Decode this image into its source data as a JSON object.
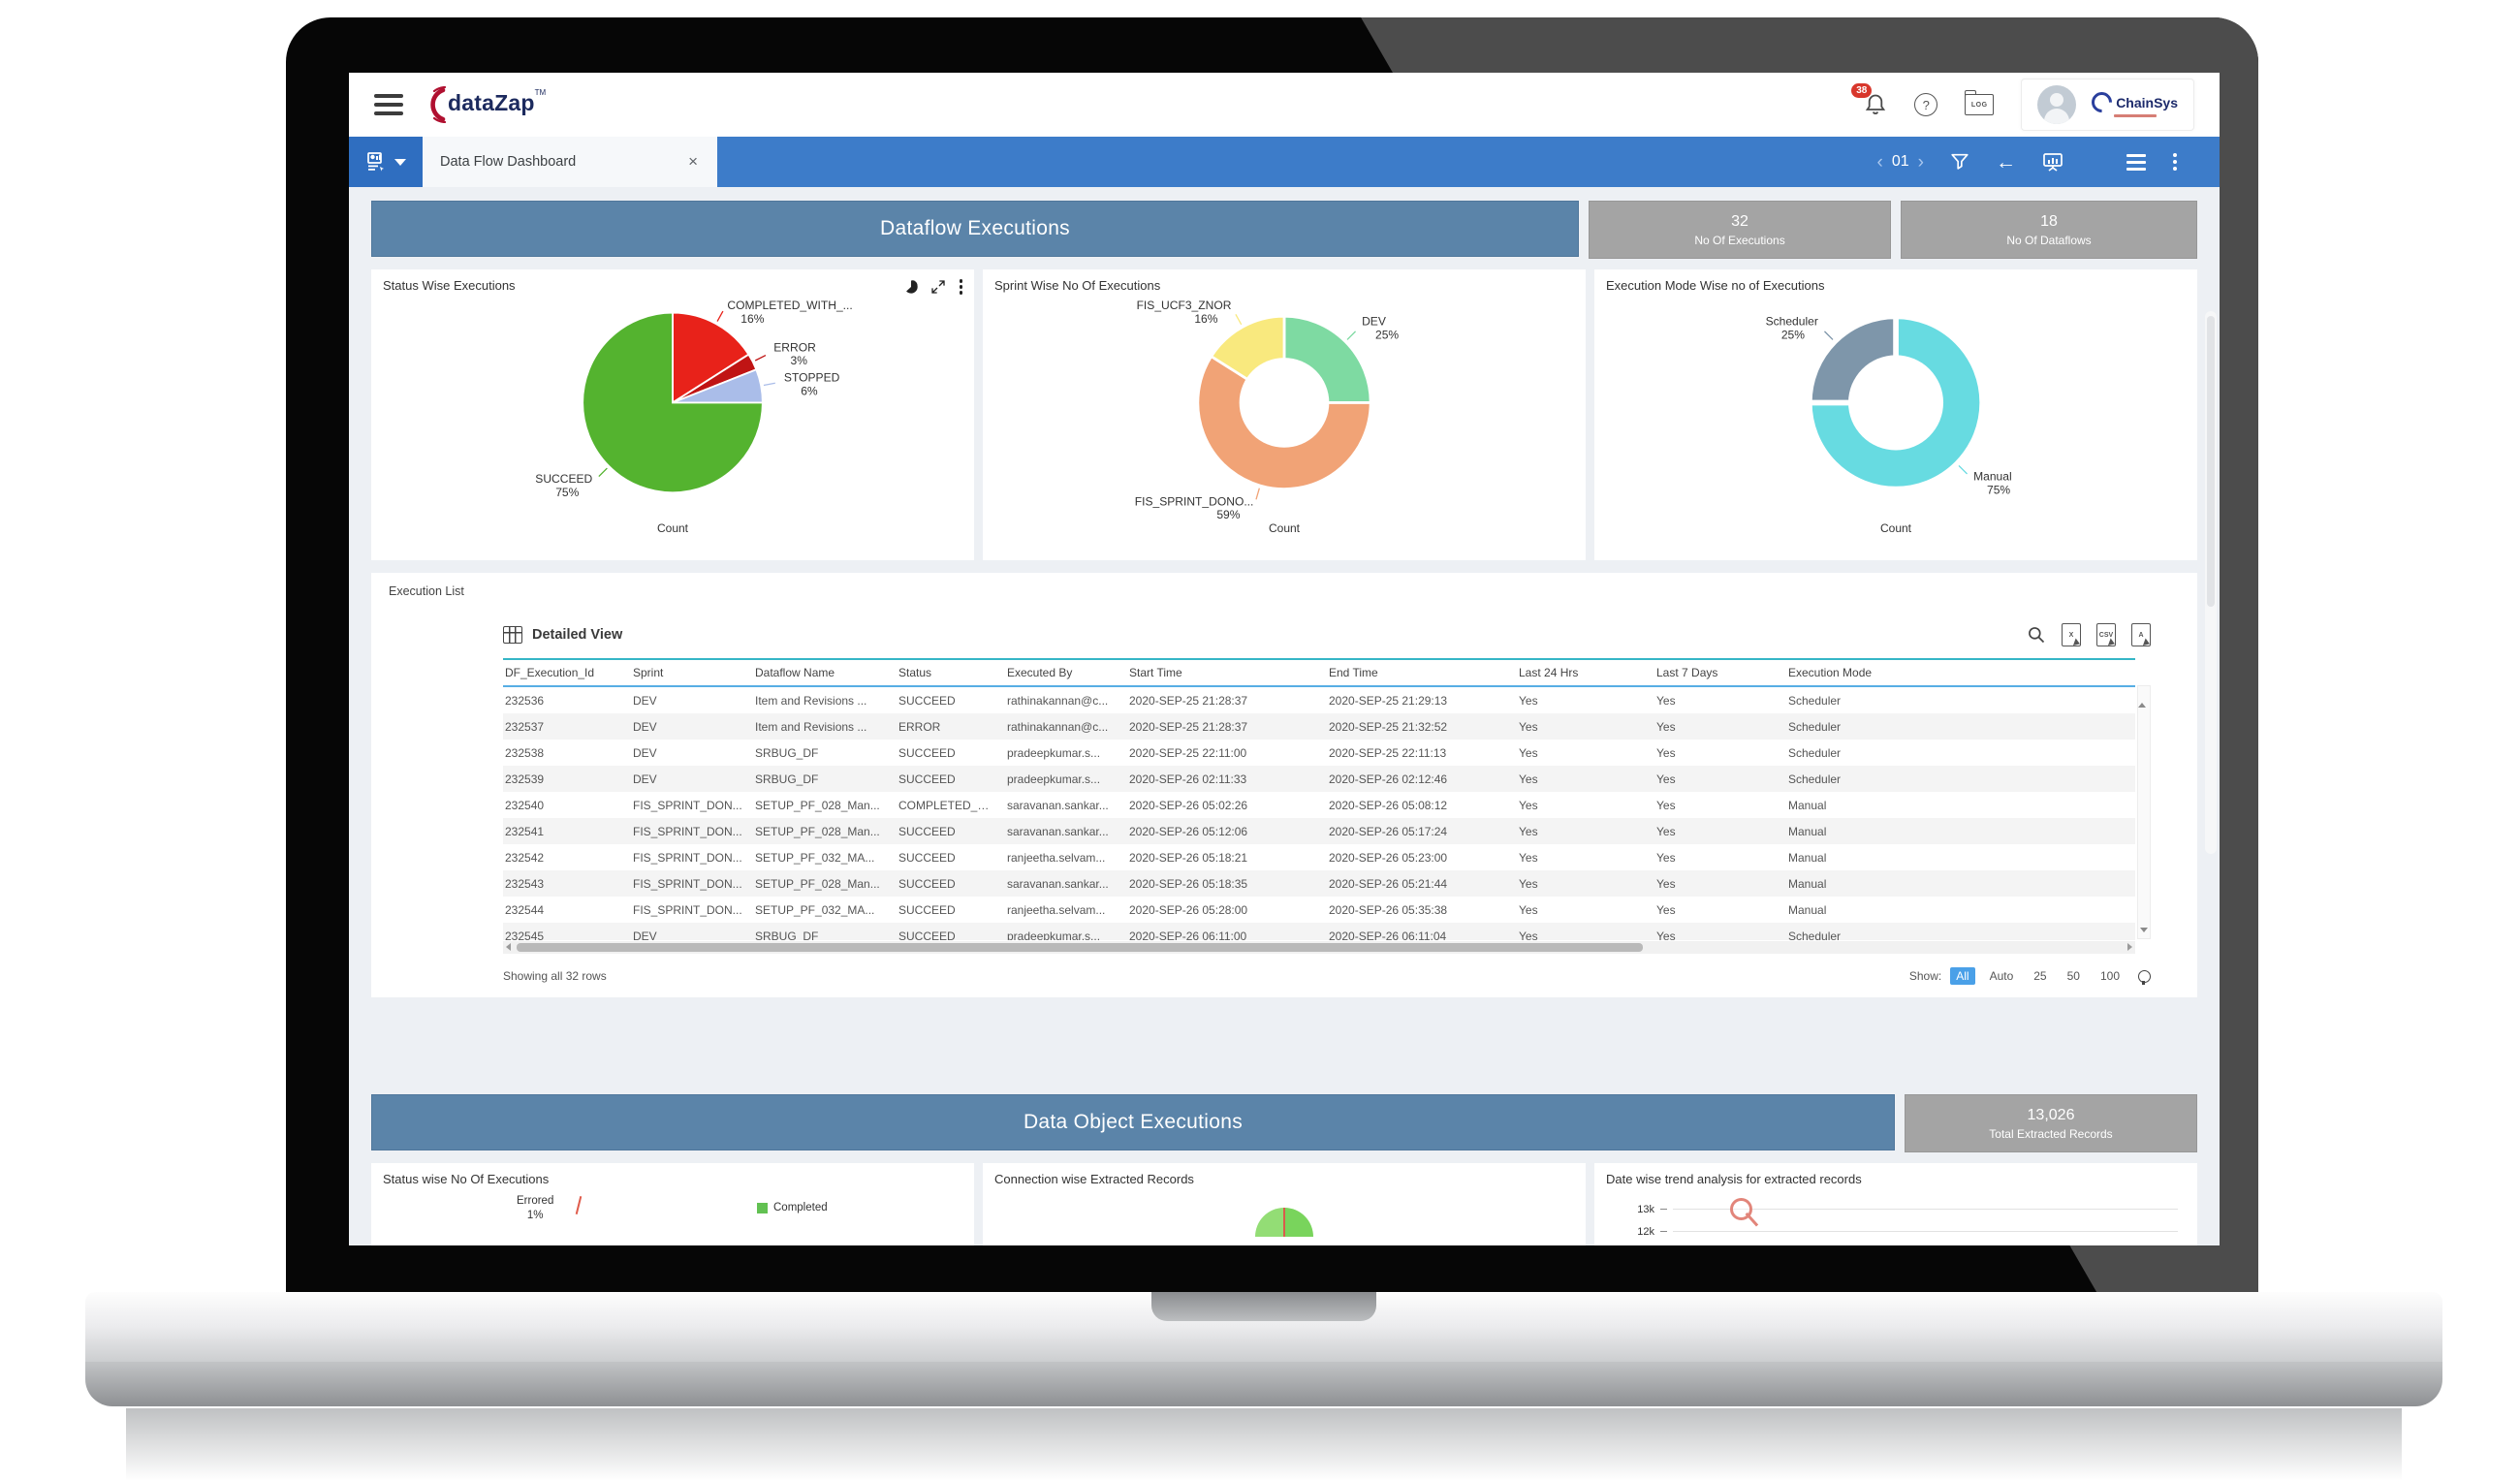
{
  "header": {
    "logo": {
      "text": "dataZap",
      "tm": "TM"
    },
    "notification_count": "38",
    "log_label": "LOG",
    "help_label": "?",
    "brand": {
      "name": "ChainSys"
    }
  },
  "toolbar": {
    "tab_title": "Data Flow Dashboard",
    "close": "×",
    "prev": "‹",
    "next": "›",
    "page_indicator": "01",
    "back_arrow": "←"
  },
  "sections": {
    "dataflow": {
      "title": "Dataflow Executions",
      "stats": [
        {
          "value": "32",
          "label": "No Of Executions"
        },
        {
          "value": "18",
          "label": "No Of Dataflows"
        }
      ]
    },
    "data_object": {
      "title": "Data Object Executions",
      "stats": [
        {
          "value": "13,026",
          "label": "Total Extracted Records"
        }
      ]
    }
  },
  "chart_data": [
    {
      "type": "pie",
      "title": "Status Wise Executions",
      "xlabel": "Count",
      "categories": [
        "COMPLETED_WITH_...",
        "ERROR",
        "STOPPED",
        "SUCCEED"
      ],
      "values": [
        16,
        3,
        6,
        75
      ],
      "unit": "%",
      "colors": [
        "#e8221a",
        "#c01414",
        "#aabde9",
        "#54b32f"
      ],
      "inner_ratio": 0,
      "legend": "off"
    },
    {
      "type": "donut",
      "title": "Sprint Wise No Of Executions",
      "xlabel": "Count",
      "categories": [
        "DEV",
        "FIS_SPRINT_DONO...",
        "FIS_UCF3_ZNOR"
      ],
      "values": [
        25,
        59,
        16
      ],
      "unit": "%",
      "colors": [
        "#7edaa2",
        "#f1a376",
        "#f9e97e"
      ],
      "inner_ratio": 0.52,
      "legend": "off"
    },
    {
      "type": "donut",
      "title": "Execution Mode Wise no of Executions",
      "xlabel": "Count",
      "categories": [
        "Manual",
        "Scheduler"
      ],
      "values": [
        75,
        25
      ],
      "unit": "%",
      "colors": [
        "#67dbe1",
        "#7e96aa"
      ],
      "inner_ratio": 0.55,
      "legend": "off"
    },
    {
      "type": "pie",
      "title": "Status wise No Of Executions",
      "partial": true,
      "callout": {
        "label": "Errored",
        "value": "1%"
      },
      "legend": [
        "Completed"
      ]
    },
    {
      "type": "pie",
      "title": "Connection wise Extracted Records",
      "partial": true
    },
    {
      "type": "line",
      "title": "Date wise trend analysis for extracted records",
      "partial": true,
      "yticks": [
        "13k",
        "12k"
      ]
    }
  ],
  "execution_list": {
    "section_label": "Execution List",
    "view_label": "Detailed View",
    "columns": [
      "DF_Execution_Id",
      "Sprint",
      "Dataflow Name",
      "Status",
      "Executed By",
      "Start Time",
      "End Time",
      "Last 24 Hrs",
      "Last 7 Days",
      "Execution Mode"
    ],
    "rows": [
      [
        "232536",
        "DEV",
        "Item and Revisions ...",
        "SUCCEED",
        "rathinakannan@c...",
        "2020-SEP-25 21:28:37",
        "2020-SEP-25 21:29:13",
        "Yes",
        "Yes",
        "Scheduler"
      ],
      [
        "232537",
        "DEV",
        "Item and Revisions ...",
        "ERROR",
        "rathinakannan@c...",
        "2020-SEP-25 21:28:37",
        "2020-SEP-25 21:32:52",
        "Yes",
        "Yes",
        "Scheduler"
      ],
      [
        "232538",
        "DEV",
        "SRBUG_DF",
        "SUCCEED",
        "pradeepkumar.s...",
        "2020-SEP-25 22:11:00",
        "2020-SEP-25 22:11:13",
        "Yes",
        "Yes",
        "Scheduler"
      ],
      [
        "232539",
        "DEV",
        "SRBUG_DF",
        "SUCCEED",
        "pradeepkumar.s...",
        "2020-SEP-26 02:11:33",
        "2020-SEP-26 02:12:46",
        "Yes",
        "Yes",
        "Scheduler"
      ],
      [
        "232540",
        "FIS_SPRINT_DON...",
        "SETUP_PF_028_Man...",
        "COMPLETED_WIT...",
        "saravanan.sankar...",
        "2020-SEP-26 05:02:26",
        "2020-SEP-26 05:08:12",
        "Yes",
        "Yes",
        "Manual"
      ],
      [
        "232541",
        "FIS_SPRINT_DON...",
        "SETUP_PF_028_Man...",
        "SUCCEED",
        "saravanan.sankar...",
        "2020-SEP-26 05:12:06",
        "2020-SEP-26 05:17:24",
        "Yes",
        "Yes",
        "Manual"
      ],
      [
        "232542",
        "FIS_SPRINT_DON...",
        "SETUP_PF_032_MA...",
        "SUCCEED",
        "ranjeetha.selvam...",
        "2020-SEP-26 05:18:21",
        "2020-SEP-26 05:23:00",
        "Yes",
        "Yes",
        "Manual"
      ],
      [
        "232543",
        "FIS_SPRINT_DON...",
        "SETUP_PF_028_Man...",
        "SUCCEED",
        "saravanan.sankar...",
        "2020-SEP-26 05:18:35",
        "2020-SEP-26 05:21:44",
        "Yes",
        "Yes",
        "Manual"
      ],
      [
        "232544",
        "FIS_SPRINT_DON...",
        "SETUP_PF_032_MA...",
        "SUCCEED",
        "ranjeetha.selvam...",
        "2020-SEP-26 05:28:00",
        "2020-SEP-26 05:35:38",
        "Yes",
        "Yes",
        "Manual"
      ],
      [
        "232545",
        "DEV",
        "SRBUG_DF",
        "SUCCEED",
        "pradeepkumar.s...",
        "2020-SEP-26 06:11:00",
        "2020-SEP-26 06:11:04",
        "Yes",
        "Yes",
        "Scheduler"
      ]
    ],
    "footer": {
      "showing": "Showing all 32 rows",
      "show_label": "Show:",
      "page_sizes": [
        "All",
        "Auto",
        "25",
        "50",
        "100"
      ],
      "active_size": "All"
    }
  }
}
